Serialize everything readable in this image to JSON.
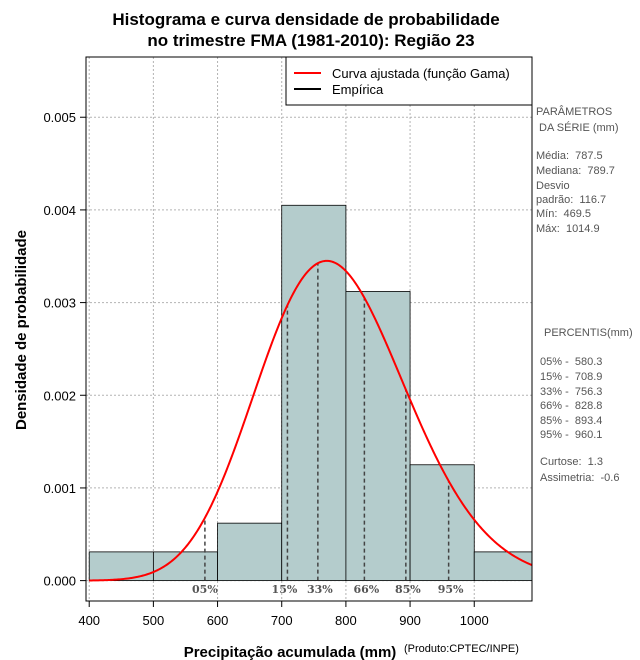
{
  "chart_data": {
    "type": "bar",
    "title_lines": [
      "Histograma e curva densidade de probabilidade",
      "no trimestre FMA (1981-2010): Região 23"
    ],
    "xlabel": "Precipitação acumulada (mm)",
    "ylabel": "Densidade de probabilidade",
    "credit": "(Produto:CPTEC/INPE)",
    "xlim": [
      395,
      1090
    ],
    "ylim": [
      -0.00022,
      0.00565
    ],
    "x_ticks": [
      400,
      500,
      600,
      700,
      800,
      900,
      1000
    ],
    "y_ticks": [
      0.0,
      0.001,
      0.002,
      0.003,
      0.004,
      0.005
    ],
    "y_tick_labels": [
      "0.000",
      "0.001",
      "0.002",
      "0.003",
      "0.004",
      "0.005"
    ],
    "grid": true,
    "bar_color": "#b4cccc",
    "bars": [
      {
        "x0": 400,
        "x1": 500,
        "value": 0.00031
      },
      {
        "x0": 500,
        "x1": 600,
        "value": 0.00031
      },
      {
        "x0": 600,
        "x1": 700,
        "value": 0.00062
      },
      {
        "x0": 700,
        "x1": 800,
        "value": 0.00405
      },
      {
        "x0": 800,
        "x1": 900,
        "value": 0.00312
      },
      {
        "x0": 900,
        "x1": 1000,
        "value": 0.00125
      },
      {
        "x0": 1000,
        "x1": 1100,
        "value": 0.00031
      }
    ],
    "curve": {
      "name": "Curva ajustada (função Gama)",
      "color": "#ff0000",
      "distribution": "gamma",
      "mean": 787.5,
      "sd": 116.7,
      "x_range": [
        400,
        1090
      ]
    },
    "legend": [
      {
        "label": "Curva ajustada (função Gama)",
        "color": "#ff0000"
      },
      {
        "label": "Empírica",
        "color": "#000000"
      }
    ],
    "legend_position": "top-right",
    "percentiles": [
      {
        "label": "05%",
        "value": 580.3
      },
      {
        "label": "15%",
        "value": 708.9
      },
      {
        "label": "33%",
        "value": 756.3
      },
      {
        "label": "66%",
        "value": 828.8
      },
      {
        "label": "85%",
        "value": 893.4
      },
      {
        "label": "95%",
        "value": 960.1
      }
    ]
  },
  "side_panel": {
    "params_title": [
      "PARÂMETROS",
      " DA SÉRIE (mm)"
    ],
    "params": [
      "Média:  787.5",
      "Mediana:  789.7",
      "Desvio",
      "padrão:  116.7",
      "Mín:  469.5",
      "Máx:  1014.9"
    ],
    "percentis_title": "PERCENTIS(mm)",
    "percentis": [
      "05% -  580.3",
      "15% -  708.9",
      "33% -  756.3",
      "66% -  828.8",
      "85% -  893.4",
      "95% -  960.1"
    ],
    "stats": [
      "Curtose:  1.3",
      "Assimetria:  -0.6"
    ]
  }
}
